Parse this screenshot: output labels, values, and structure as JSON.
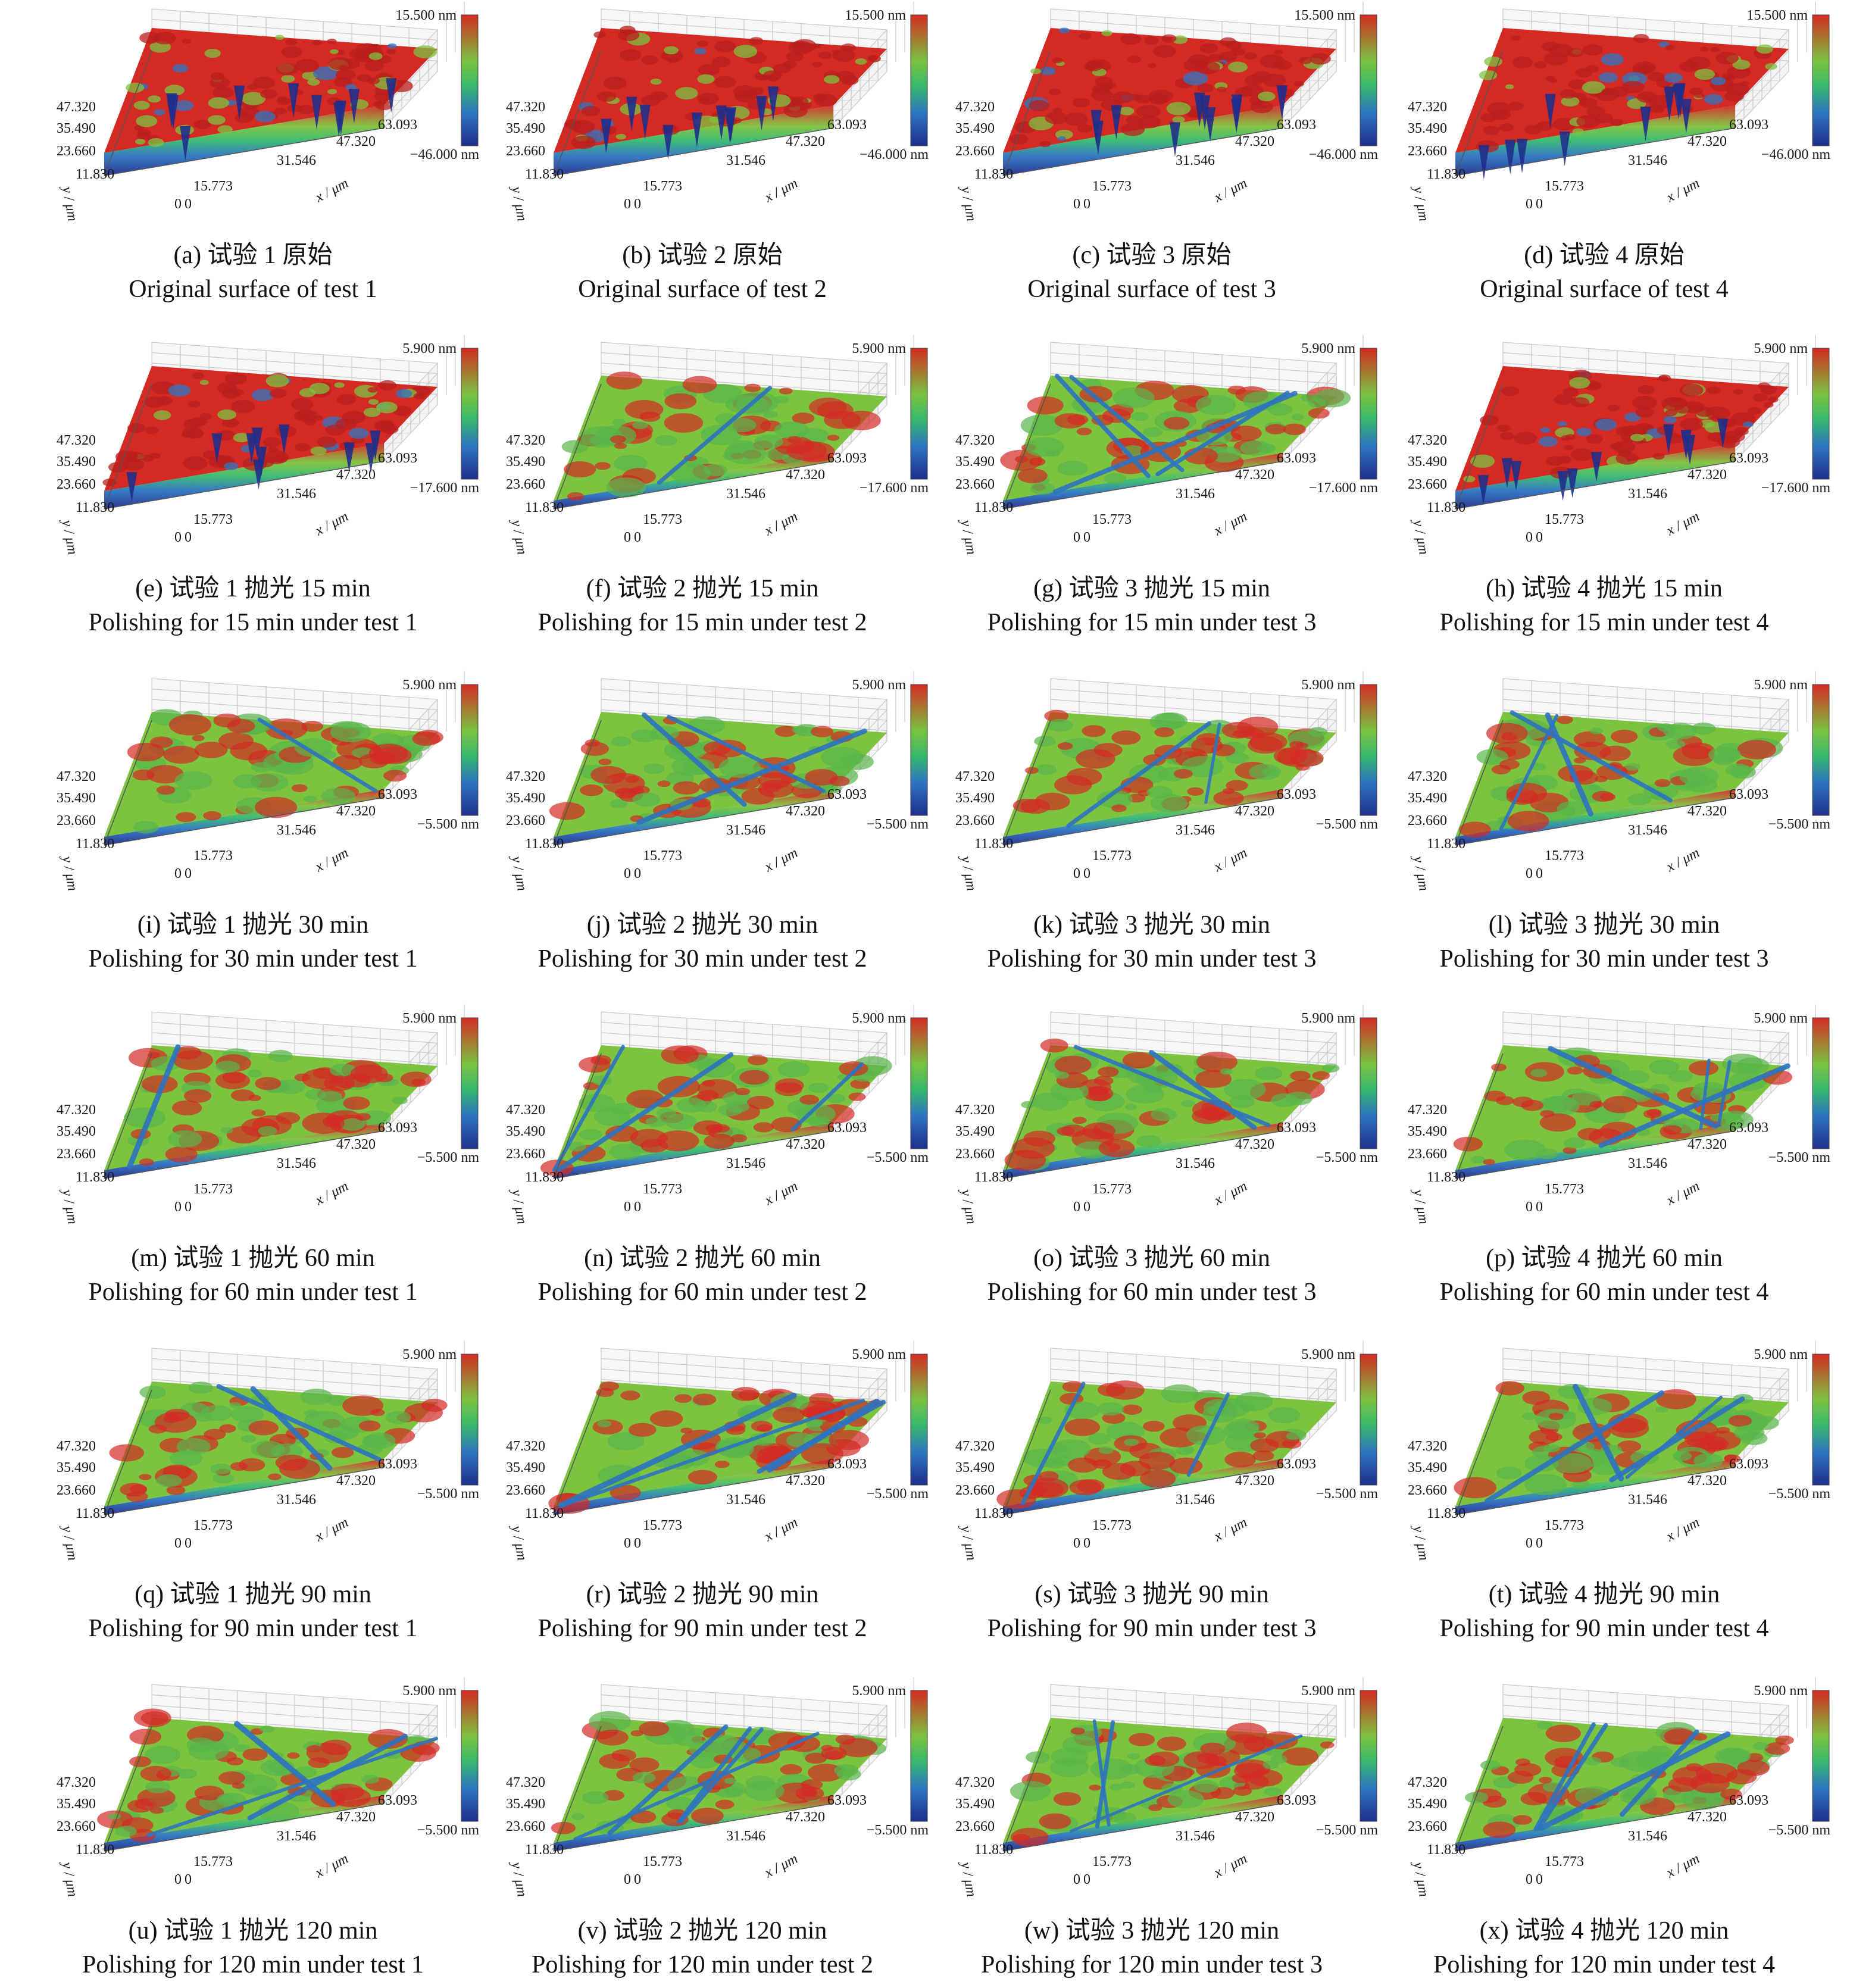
{
  "axes": {
    "y_ticks": [
      "47.320",
      "35.490",
      "23.660",
      "11.830",
      "0"
    ],
    "x_ticks": [
      "0",
      "15.773",
      "31.546",
      "47.320",
      "63.093"
    ],
    "y_label": "y / μm",
    "x_label": "x / μm"
  },
  "colors": {
    "high": "#d42a24",
    "upper": "#7cc33f",
    "mid": "#35b86e",
    "lower": "#2e74c2",
    "low": "#1f2f8c",
    "grid": "#c9c9c9"
  },
  "panels": [
    {
      "id": "a",
      "cbar_max": "15.500 nm",
      "cbar_min": "−46.000 nm",
      "surface": "original",
      "caption_cn": "(a) 试验 1 原始",
      "caption_en": "Original surface of test 1"
    },
    {
      "id": "b",
      "cbar_max": "15.500 nm",
      "cbar_min": "−46.000 nm",
      "surface": "original",
      "caption_cn": "(b) 试验 2 原始",
      "caption_en": "Original surface of test 2"
    },
    {
      "id": "c",
      "cbar_max": "15.500 nm",
      "cbar_min": "−46.000 nm",
      "surface": "original",
      "caption_cn": "(c) 试验 3 原始",
      "caption_en": "Original surface of test 3"
    },
    {
      "id": "d",
      "cbar_max": "15.500 nm",
      "cbar_min": "−46.000 nm",
      "surface": "original",
      "caption_cn": "(d) 试验 4 原始",
      "caption_en": "Original surface of test 4"
    },
    {
      "id": "e",
      "cbar_max": "5.900 nm",
      "cbar_min": "−17.600 nm",
      "surface": "rough",
      "caption_cn": "(e) 试验 1 抛光 15 min",
      "caption_en": "Polishing for 15 min under test 1"
    },
    {
      "id": "f",
      "cbar_max": "5.900 nm",
      "cbar_min": "−17.600 nm",
      "surface": "mixed",
      "caption_cn": "(f) 试验 2 抛光 15 min",
      "caption_en": "Polishing for 15 min under test 2"
    },
    {
      "id": "g",
      "cbar_max": "5.900 nm",
      "cbar_min": "−17.600 nm",
      "surface": "scratched",
      "caption_cn": "(g) 试验 3 抛光 15 min",
      "caption_en": "Polishing for 15 min under test 3"
    },
    {
      "id": "h",
      "cbar_max": "5.900 nm",
      "cbar_min": "−17.600 nm",
      "surface": "rough",
      "caption_cn": "(h) 试验 4 抛光 15 min",
      "caption_en": "Polishing for 15 min under test 4"
    },
    {
      "id": "i",
      "cbar_max": "5.900 nm",
      "cbar_min": "−5.500 nm",
      "surface": "mixed",
      "caption_cn": "(i) 试验 1 抛光 30 min",
      "caption_en": "Polishing for 30 min under test 1"
    },
    {
      "id": "j",
      "cbar_max": "5.900 nm",
      "cbar_min": "−5.500 nm",
      "surface": "scratched",
      "caption_cn": "(j) 试验 2 抛光 30 min",
      "caption_en": "Polishing for 30 min under test 2"
    },
    {
      "id": "k",
      "cbar_max": "5.900 nm",
      "cbar_min": "−5.500 nm",
      "surface": "scratched",
      "caption_cn": "(k) 试验 3 抛光 30 min",
      "caption_en": "Polishing for 30 min under test 3"
    },
    {
      "id": "l",
      "cbar_max": "5.900 nm",
      "cbar_min": "−5.500 nm",
      "surface": "scratched",
      "caption_cn": "(l) 试验 3 抛光 30 min",
      "caption_en": "Polishing for 30 min under test 3"
    },
    {
      "id": "m",
      "cbar_max": "5.900 nm",
      "cbar_min": "−5.500 nm",
      "surface": "mixed",
      "caption_cn": "(m) 试验 1 抛光 60 min",
      "caption_en": "Polishing for 60 min under test 1"
    },
    {
      "id": "n",
      "cbar_max": "5.900 nm",
      "cbar_min": "−5.500 nm",
      "surface": "scratched",
      "caption_cn": "(n) 试验 2 抛光 60 min",
      "caption_en": "Polishing for 60 min under test 2"
    },
    {
      "id": "o",
      "cbar_max": "5.900 nm",
      "cbar_min": "−5.500 nm",
      "surface": "scratched",
      "caption_cn": "(o) 试验 3 抛光 60 min",
      "caption_en": "Polishing for 60 min under test 3"
    },
    {
      "id": "p",
      "cbar_max": "5.900 nm",
      "cbar_min": "−5.500 nm",
      "surface": "scratched",
      "caption_cn": "(p) 试验 4 抛光 60 min",
      "caption_en": "Polishing for 60 min under test 4"
    },
    {
      "id": "q",
      "cbar_max": "5.900 nm",
      "cbar_min": "−5.500 nm",
      "surface": "scratched",
      "caption_cn": "(q) 试验 1 抛光 90 min",
      "caption_en": "Polishing for 90 min under test 1"
    },
    {
      "id": "r",
      "cbar_max": "5.900 nm",
      "cbar_min": "−5.500 nm",
      "surface": "scratched",
      "caption_cn": "(r) 试验 2 抛光 90 min",
      "caption_en": "Polishing for 90 min under test 2"
    },
    {
      "id": "s",
      "cbar_max": "5.900 nm",
      "cbar_min": "−5.500 nm",
      "surface": "scratched",
      "caption_cn": "(s) 试验 3 抛光 90 min",
      "caption_en": "Polishing for 90 min under test 3"
    },
    {
      "id": "t",
      "cbar_max": "5.900 nm",
      "cbar_min": "−5.500 nm",
      "surface": "scratched",
      "caption_cn": "(t) 试验 4 抛光 90 min",
      "caption_en": "Polishing for 90 min under test 4"
    },
    {
      "id": "u",
      "cbar_max": "5.900 nm",
      "cbar_min": "−5.500 nm",
      "surface": "scratched",
      "caption_cn": "(u) 试验 1 抛光 120 min",
      "caption_en": "Polishing for 120 min under test 1"
    },
    {
      "id": "v",
      "cbar_max": "5.900 nm",
      "cbar_min": "−5.500 nm",
      "surface": "scratched",
      "caption_cn": "(v) 试验 2 抛光 120 min",
      "caption_en": "Polishing for 120 min under test 2"
    },
    {
      "id": "w",
      "cbar_max": "5.900 nm",
      "cbar_min": "−5.500 nm",
      "surface": "scratched",
      "caption_cn": "(w) 试验 3 抛光 120 min",
      "caption_en": "Polishing for 120 min under test 3"
    },
    {
      "id": "x",
      "cbar_max": "5.900 nm",
      "cbar_min": "−5.500 nm",
      "surface": "scratched",
      "caption_cn": "(x) 试验 4 抛光 120 min",
      "caption_en": "Polishing for 120 min under test 4"
    }
  ]
}
